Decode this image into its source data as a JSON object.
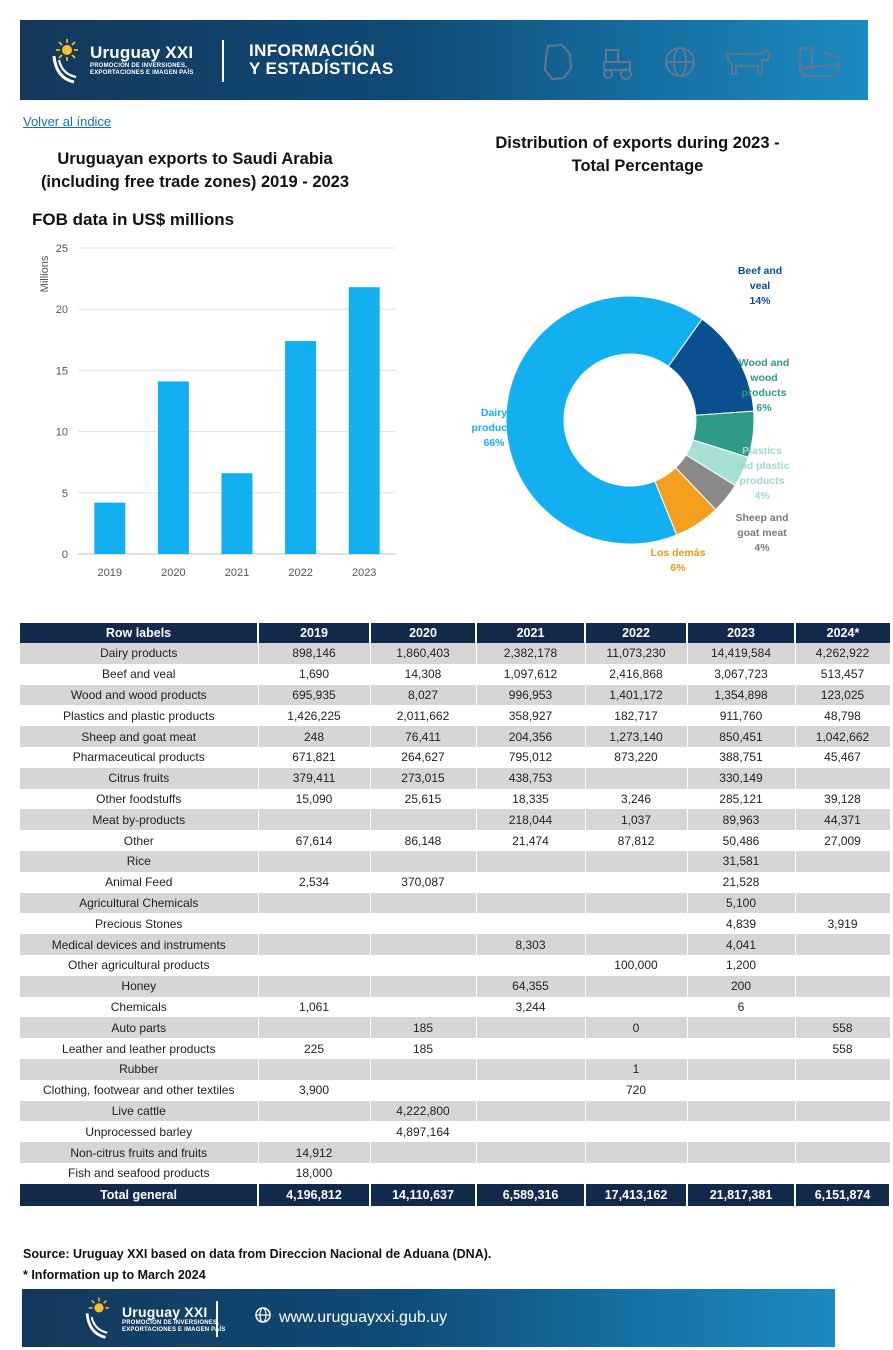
{
  "header": {
    "brand_name": "Uruguay XXI",
    "brand_sub_1": "PROMOCIÓN DE INVERSIONES,",
    "brand_sub_2": "EXPORTACIONES E IMAGEN PAÍS",
    "title_line1": "INFORMACIÓN",
    "title_line2": "Y ESTADÍSTICAS"
  },
  "back_link": "Volver al índice",
  "bar_chart": {
    "title_line1": "Uruguayan exports to Saudi Arabia",
    "title_line2": "(including free trade zones) 2019 - 2023",
    "subtitle": "FOB data in US$ millions"
  },
  "pie_chart": {
    "title_line1": "Distribution of exports during 2023 -",
    "title_line2": "Total Percentage"
  },
  "chart_data": [
    {
      "type": "bar",
      "categories": [
        "2019",
        "2020",
        "2021",
        "2022",
        "2023"
      ],
      "values": [
        4.2,
        14.1,
        6.6,
        17.4,
        21.8
      ],
      "ylabel": "Millions",
      "ylim": [
        0,
        25
      ],
      "yticks": [
        "0",
        "5",
        "10",
        "15",
        "20",
        "25"
      ],
      "color": "#12b0f0",
      "grid": true
    },
    {
      "type": "pie",
      "slices": [
        {
          "name_lines": [
            "Dairy",
            "products"
          ],
          "pct_label": "66%",
          "value": 66,
          "color": "#12b0f0",
          "label_color": "#12b0f0"
        },
        {
          "name_lines": [
            "Beef and",
            "veal"
          ],
          "pct_label": "14%",
          "value": 14,
          "color": "#0a4f8f",
          "label_color": "#0a4f8f"
        },
        {
          "name_lines": [
            "Wood and",
            "wood",
            "products"
          ],
          "pct_label": "6%",
          "value": 6,
          "color": "#2f9a85",
          "label_color": "#2f9a85"
        },
        {
          "name_lines": [
            "Plastics",
            "and plastic",
            "products"
          ],
          "pct_label": "4%",
          "value": 4,
          "color": "#a8e0d8",
          "label_color": "#9fd8d0"
        },
        {
          "name_lines": [
            "Sheep and",
            "goat meat"
          ],
          "pct_label": "4%",
          "value": 4,
          "color": "#8a8a8a",
          "label_color": "#7a7a7a"
        },
        {
          "name_lines": [
            "Los demás"
          ],
          "pct_label": "6%",
          "value": 6,
          "color": "#f4a01e",
          "label_color": "#e8981a"
        }
      ]
    }
  ],
  "table": {
    "headers": [
      "Row labels",
      "2019",
      "2020",
      "2021",
      "2022",
      "2023",
      "2024*"
    ],
    "rows": [
      [
        "Dairy products",
        "898,146",
        "1,860,403",
        "2,382,178",
        "11,073,230",
        "14,419,584",
        "4,262,922"
      ],
      [
        "Beef and veal",
        "1,690",
        "14,308",
        "1,097,612",
        "2,416,868",
        "3,067,723",
        "513,457"
      ],
      [
        "Wood and wood products",
        "695,935",
        "8,027",
        "996,953",
        "1,401,172",
        "1,354,898",
        "123,025"
      ],
      [
        "Plastics and plastic products",
        "1,426,225",
        "2,011,662",
        "358,927",
        "182,717",
        "911,760",
        "48,798"
      ],
      [
        "Sheep and goat meat",
        "248",
        "76,411",
        "204,356",
        "1,273,140",
        "850,451",
        "1,042,662"
      ],
      [
        "Pharmaceutical products",
        "671,821",
        "264,627",
        "795,012",
        "873,220",
        "388,751",
        "45,467"
      ],
      [
        "Citrus fruits",
        "379,411",
        "273,015",
        "438,753",
        "",
        "330,149",
        ""
      ],
      [
        "Other foodstuffs",
        "15,090",
        "25,615",
        "18,335",
        "3,246",
        "285,121",
        "39,128"
      ],
      [
        "Meat by-products",
        "",
        "",
        "218,044",
        "1,037",
        "89,963",
        "44,371"
      ],
      [
        "Other",
        "67,614",
        "86,148",
        "21,474",
        "87,812",
        "50,486",
        "27,009"
      ],
      [
        "Rice",
        "",
        "",
        "",
        "",
        "31,581",
        ""
      ],
      [
        "Animal Feed",
        "2,534",
        "370,087",
        "",
        "",
        "21,528",
        ""
      ],
      [
        "Agricultural Chemicals",
        "",
        "",
        "",
        "",
        "5,100",
        ""
      ],
      [
        "Precious Stones",
        "",
        "",
        "",
        "",
        "4,839",
        "3,919"
      ],
      [
        "Medical devices and instruments",
        "",
        "",
        "8,303",
        "",
        "4,041",
        ""
      ],
      [
        "Other agricultural products",
        "",
        "",
        "",
        "100,000",
        "1,200",
        ""
      ],
      [
        "Honey",
        "",
        "",
        "64,355",
        "",
        "200",
        ""
      ],
      [
        "Chemicals",
        "1,061",
        "",
        "3,244",
        "",
        "6",
        ""
      ],
      [
        "Auto parts",
        "",
        "185",
        "",
        "0",
        "",
        "558"
      ],
      [
        "Leather and leather products",
        "225",
        "185",
        "",
        "",
        "",
        "558"
      ],
      [
        "Rubber",
        "",
        "",
        "",
        "1",
        "",
        ""
      ],
      [
        "Clothing, footwear and other textiles",
        "3,900",
        "",
        "",
        "720",
        "",
        ""
      ],
      [
        "Live cattle",
        "",
        "4,222,800",
        "",
        "",
        "",
        ""
      ],
      [
        "Unprocessed barley",
        "",
        "4,897,164",
        "",
        "",
        "",
        ""
      ],
      [
        "Non-citrus fruits and fruits",
        "14,912",
        "",
        "",
        "",
        "",
        ""
      ],
      [
        "Fish and seafood products",
        "18,000",
        "",
        "",
        "",
        "",
        ""
      ]
    ],
    "total": [
      "Total general",
      "4,196,812",
      "14,110,637",
      "6,589,316",
      "17,413,162",
      "21,817,381",
      "6,151,874"
    ]
  },
  "notes": {
    "source": "Source: Uruguay XXI based on data from Direccion Nacional de Aduana (DNA).",
    "footnote": "* Information up to March 2024"
  },
  "footer": {
    "url": "www.uruguayxxi.gub.uy"
  }
}
